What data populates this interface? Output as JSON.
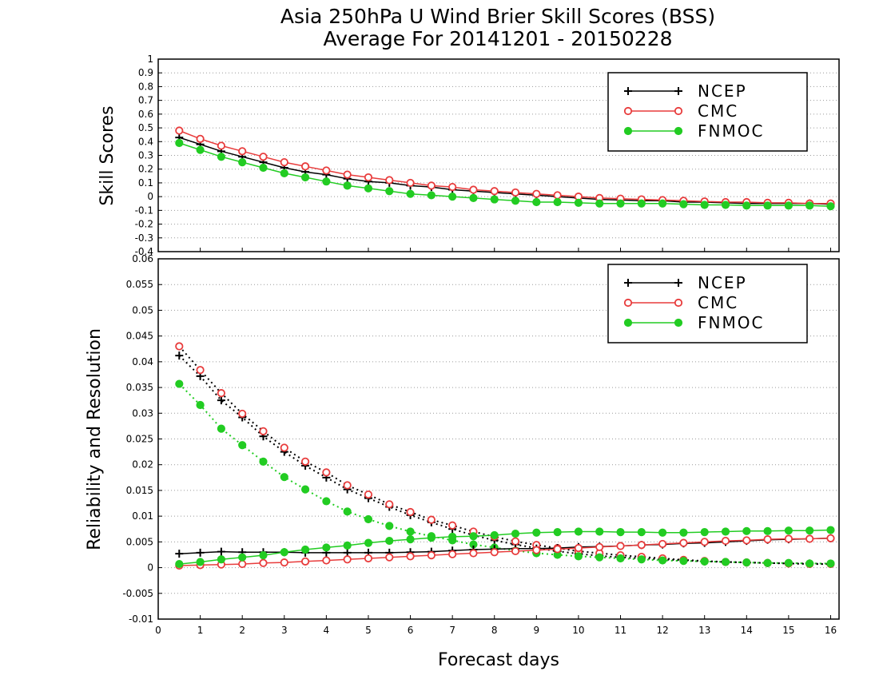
{
  "title": "Asia 250hPa U Wind Brier Skill Scores (BSS)",
  "subtitle": "Average For 20141201 - 20150228",
  "xlabel": "Forecast days",
  "colors": {
    "NCEP": "#000000",
    "CMC": "#e83c3c",
    "FNMOC": "#22cc22"
  },
  "legend_labels": [
    "NCEP",
    "CMC",
    "FNMOC"
  ],
  "chart_data": [
    {
      "type": "line",
      "panel": "top",
      "ylabel": "Skill Scores",
      "xlim": [
        0,
        16.2
      ],
      "ylim": [
        -0.4,
        1
      ],
      "xticks": [
        "0",
        "1",
        "2",
        "3",
        "4",
        "5",
        "6",
        "7",
        "8",
        "9",
        "10",
        "11",
        "12",
        "13",
        "14",
        "15",
        "16"
      ],
      "yticks": [
        "-0.4",
        "-0.3",
        "-0.2",
        "-0.1",
        "0",
        "0.1",
        "0.2",
        "0.3",
        "0.4",
        "0.5",
        "0.6",
        "0.7",
        "0.8",
        "0.9",
        "1"
      ],
      "grid": true,
      "legend_position": "top-right",
      "x": [
        0.5,
        1,
        1.5,
        2,
        2.5,
        3,
        3.5,
        4,
        4.5,
        5,
        5.5,
        6,
        6.5,
        7,
        7.5,
        8,
        8.5,
        9,
        9.5,
        10,
        10.5,
        11,
        11.5,
        12,
        12.5,
        13,
        13.5,
        14,
        14.5,
        15,
        15.5,
        16
      ],
      "series": [
        {
          "name": "NCEP",
          "marker": "plus",
          "line": "solid",
          "values": [
            0.43,
            0.38,
            0.33,
            0.29,
            0.25,
            0.21,
            0.18,
            0.16,
            0.13,
            0.11,
            0.1,
            0.08,
            0.07,
            0.05,
            0.04,
            0.03,
            0.02,
            0.01,
            0.0,
            -0.01,
            -0.02,
            -0.025,
            -0.03,
            -0.03,
            -0.04,
            -0.04,
            -0.045,
            -0.05,
            -0.05,
            -0.05,
            -0.05,
            -0.055
          ]
        },
        {
          "name": "CMC",
          "marker": "open-circle",
          "line": "solid",
          "values": [
            0.48,
            0.42,
            0.37,
            0.33,
            0.29,
            0.25,
            0.22,
            0.19,
            0.16,
            0.14,
            0.12,
            0.1,
            0.08,
            0.07,
            0.05,
            0.04,
            0.03,
            0.02,
            0.01,
            0.0,
            -0.01,
            -0.015,
            -0.02,
            -0.025,
            -0.03,
            -0.035,
            -0.04,
            -0.04,
            -0.045,
            -0.045,
            -0.05,
            -0.05
          ]
        },
        {
          "name": "FNMOC",
          "marker": "filled-circle",
          "line": "solid",
          "values": [
            0.39,
            0.34,
            0.29,
            0.25,
            0.21,
            0.17,
            0.14,
            0.11,
            0.08,
            0.06,
            0.04,
            0.02,
            0.01,
            0.0,
            -0.01,
            -0.02,
            -0.03,
            -0.04,
            -0.04,
            -0.045,
            -0.05,
            -0.05,
            -0.05,
            -0.05,
            -0.055,
            -0.06,
            -0.06,
            -0.065,
            -0.065,
            -0.065,
            -0.065,
            -0.07
          ]
        }
      ]
    },
    {
      "type": "line",
      "panel": "bottom",
      "ylabel": "Reliability and Resolution",
      "xlim": [
        0,
        16.2
      ],
      "ylim": [
        -0.01,
        0.06
      ],
      "xticks": [
        "0",
        "1",
        "2",
        "3",
        "4",
        "5",
        "6",
        "7",
        "8",
        "9",
        "10",
        "11",
        "12",
        "13",
        "14",
        "15",
        "16"
      ],
      "yticks": [
        "-0.01",
        "-0.005",
        "0",
        "0.005",
        "0.01",
        "0.015",
        "0.02",
        "0.025",
        "0.03",
        "0.035",
        "0.04",
        "0.045",
        "0.05",
        "0.055",
        "0.06"
      ],
      "grid": true,
      "legend_position": "top-right",
      "x": [
        0.5,
        1,
        1.5,
        2,
        2.5,
        3,
        3.5,
        4,
        4.5,
        5,
        5.5,
        6,
        6.5,
        7,
        7.5,
        8,
        8.5,
        9,
        9.5,
        10,
        10.5,
        11,
        11.5,
        12,
        12.5,
        13,
        13.5,
        14,
        14.5,
        15,
        15.5,
        16
      ],
      "series": [
        {
          "name": "NCEP reliability",
          "model": "NCEP",
          "marker": "plus",
          "line": "dotted",
          "values": [
            0.0412,
            0.0372,
            0.0325,
            0.0292,
            0.0255,
            0.0225,
            0.0198,
            0.0175,
            0.0152,
            0.0135,
            0.0118,
            0.0102,
            0.0088,
            0.0075,
            0.0063,
            0.0053,
            0.0045,
            0.0038,
            0.0032,
            0.0027,
            0.0023,
            0.002,
            0.0018,
            0.0016,
            0.0014,
            0.0012,
            0.0011,
            0.001,
            0.0009,
            0.0008,
            0.0008,
            0.0007
          ]
        },
        {
          "name": "CMC reliability",
          "model": "CMC",
          "marker": "open-circle",
          "line": "dotted",
          "values": [
            0.043,
            0.0384,
            0.0339,
            0.0299,
            0.0265,
            0.0233,
            0.0206,
            0.0185,
            0.016,
            0.0142,
            0.0123,
            0.0108,
            0.0093,
            0.0082,
            0.007,
            0.006,
            0.0051,
            0.0044,
            0.0038,
            0.0032,
            0.0028,
            0.0024,
            0.0021,
            0.0018,
            0.0015,
            0.0013,
            0.0011,
            0.001,
            0.0009,
            0.0008,
            0.0007,
            0.0007
          ]
        },
        {
          "name": "FNMOC reliability",
          "model": "FNMOC",
          "marker": "filled-circle",
          "line": "dotted",
          "values": [
            0.0357,
            0.0316,
            0.027,
            0.0238,
            0.0206,
            0.0176,
            0.0152,
            0.0129,
            0.0109,
            0.0094,
            0.0081,
            0.007,
            0.0061,
            0.0053,
            0.0045,
            0.0039,
            0.0033,
            0.0028,
            0.0025,
            0.0022,
            0.002,
            0.0018,
            0.0016,
            0.0014,
            0.0013,
            0.0012,
            0.0011,
            0.001,
            0.0009,
            0.0009,
            0.0008,
            0.0008
          ]
        },
        {
          "name": "NCEP resolution",
          "model": "NCEP",
          "marker": "plus",
          "line": "solid",
          "values": [
            0.0027,
            0.0029,
            0.0031,
            0.003,
            0.003,
            0.003,
            0.0029,
            0.0029,
            0.0029,
            0.0029,
            0.0029,
            0.003,
            0.0031,
            0.0033,
            0.0035,
            0.0036,
            0.0037,
            0.0037,
            0.0038,
            0.004,
            0.0041,
            0.0042,
            0.0044,
            0.0045,
            0.0047,
            0.0048,
            0.005,
            0.0052,
            0.0054,
            0.0055,
            0.0056,
            0.0057
          ]
        },
        {
          "name": "CMC resolution",
          "model": "CMC",
          "marker": "open-circle",
          "line": "solid",
          "values": [
            0.0004,
            0.0005,
            0.0006,
            0.0007,
            0.0009,
            0.001,
            0.0012,
            0.0014,
            0.0016,
            0.0018,
            0.002,
            0.0022,
            0.0024,
            0.0026,
            0.0028,
            0.003,
            0.0032,
            0.0034,
            0.0036,
            0.0038,
            0.004,
            0.0042,
            0.0044,
            0.0046,
            0.0048,
            0.005,
            0.0052,
            0.0053,
            0.0055,
            0.0056,
            0.0056,
            0.0057
          ]
        },
        {
          "name": "FNMOC resolution",
          "model": "FNMOC",
          "marker": "filled-circle",
          "line": "solid",
          "values": [
            0.0007,
            0.0011,
            0.0016,
            0.002,
            0.0024,
            0.003,
            0.0035,
            0.0039,
            0.0043,
            0.0048,
            0.0052,
            0.0055,
            0.0058,
            0.006,
            0.0061,
            0.0063,
            0.0066,
            0.0068,
            0.0069,
            0.007,
            0.007,
            0.0069,
            0.0069,
            0.0068,
            0.0068,
            0.0069,
            0.007,
            0.0071,
            0.0071,
            0.0072,
            0.0072,
            0.0073
          ]
        }
      ]
    }
  ]
}
